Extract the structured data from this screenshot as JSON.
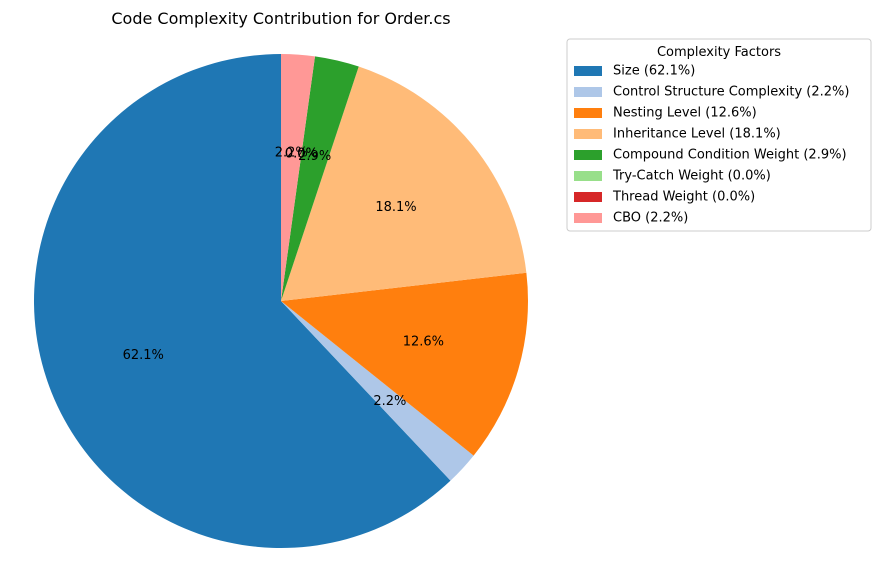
{
  "chart_data": {
    "type": "pie",
    "title": "Code Complexity Contribution for Order.cs",
    "start_angle_deg": 90,
    "direction": "counterclockwise",
    "slices": [
      {
        "label": "Size (62.1%)",
        "value": 62.1,
        "pct_label": "62.1%",
        "color": "#1f77b4"
      },
      {
        "label": "Control Structure Complexity (2.2%)",
        "value": 2.2,
        "pct_label": "2.2%",
        "color": "#aec7e8"
      },
      {
        "label": "Nesting Level (12.6%)",
        "value": 12.6,
        "pct_label": "12.6%",
        "color": "#ff7f0e"
      },
      {
        "label": "Inheritance Level (18.1%)",
        "value": 18.1,
        "pct_label": "18.1%",
        "color": "#ffbb78"
      },
      {
        "label": "Compound Condition Weight (2.9%)",
        "value": 2.9,
        "pct_label": "2.9%",
        "color": "#2ca02c"
      },
      {
        "label": "Try-Catch Weight (0.0%)",
        "value": 0.0,
        "pct_label": "0.0%",
        "color": "#98df8a"
      },
      {
        "label": "Thread Weight (0.0%)",
        "value": 0.0,
        "pct_label": "0.0%",
        "color": "#d62728"
      },
      {
        "label": "CBO (2.2%)",
        "value": 2.2,
        "pct_label": "2.2%",
        "color": "#ff9896"
      }
    ],
    "legend": {
      "title": "Complexity Factors",
      "placement": "upper right, outside"
    }
  }
}
